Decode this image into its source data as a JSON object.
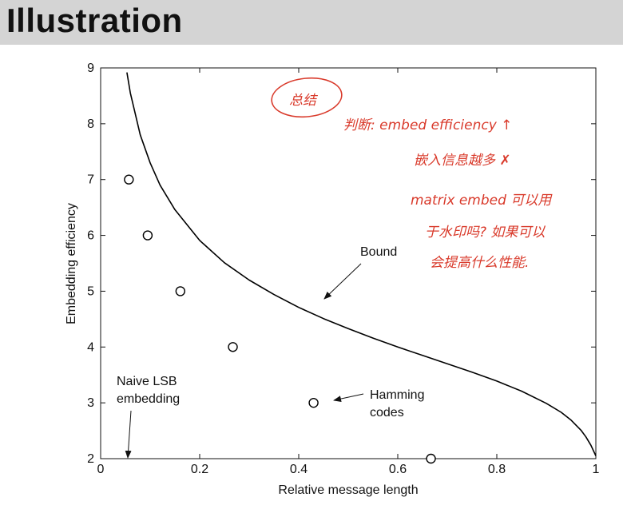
{
  "header": {
    "title": "Illustration"
  },
  "chart_data": {
    "type": "line",
    "title": "",
    "xlabel": "Relative message length",
    "ylabel": "Embedding efficiency",
    "xlim": [
      0,
      1
    ],
    "ylim": [
      2,
      9
    ],
    "xticks": [
      0,
      0.2,
      0.4,
      0.6,
      0.8,
      1
    ],
    "xtick_labels": [
      "0",
      "0.2",
      "0.4",
      "0.6",
      "0.8",
      "1"
    ],
    "yticks": [
      2,
      3,
      4,
      5,
      6,
      7,
      8,
      9
    ],
    "ytick_labels": [
      "2",
      "3",
      "4",
      "5",
      "6",
      "7",
      "8",
      "9"
    ],
    "grid": false,
    "series": [
      {
        "name": "Bound",
        "kind": "curve",
        "color": "#000000",
        "x": [
          0.053,
          0.06,
          0.08,
          0.1,
          0.12,
          0.15,
          0.2,
          0.25,
          0.3,
          0.35,
          0.4,
          0.45,
          0.5,
          0.55,
          0.6,
          0.65,
          0.7,
          0.75,
          0.8,
          0.85,
          0.9,
          0.93,
          0.95,
          0.97,
          0.98,
          0.99,
          1.0
        ],
        "y": [
          8.92,
          8.55,
          7.8,
          7.3,
          6.9,
          6.46,
          5.91,
          5.51,
          5.2,
          4.94,
          4.71,
          4.51,
          4.33,
          4.16,
          4.0,
          3.85,
          3.7,
          3.55,
          3.39,
          3.21,
          2.99,
          2.83,
          2.69,
          2.51,
          2.39,
          2.24,
          2.05
        ]
      },
      {
        "name": "Hamming codes",
        "kind": "scatter",
        "marker": "open-circle",
        "color": "#000000",
        "x": [
          0.057,
          0.095,
          0.161,
          0.267,
          0.43,
          0.667
        ],
        "y": [
          7.0,
          6.0,
          5.0,
          4.0,
          3.0,
          2.0
        ]
      },
      {
        "name": "Naive LSB embedding",
        "kind": "point",
        "x": [
          0.055
        ],
        "y": [
          2.0
        ]
      }
    ],
    "annotations": [
      {
        "id": "bound",
        "text": [
          "Bound"
        ]
      },
      {
        "id": "hamming",
        "text": [
          "Hamming",
          "codes"
        ]
      },
      {
        "id": "naive",
        "text": [
          "Naive LSB",
          "embedding"
        ]
      }
    ]
  },
  "handwritten_notes": {
    "color": "#d93a2b",
    "circled": "总结",
    "lines": [
      "判断: embed efficiency ↑",
      "嵌入信息越多 ✗",
      "matrix embed 可以用",
      "于水印吗? 如果可以",
      "会提高什么性能."
    ]
  }
}
